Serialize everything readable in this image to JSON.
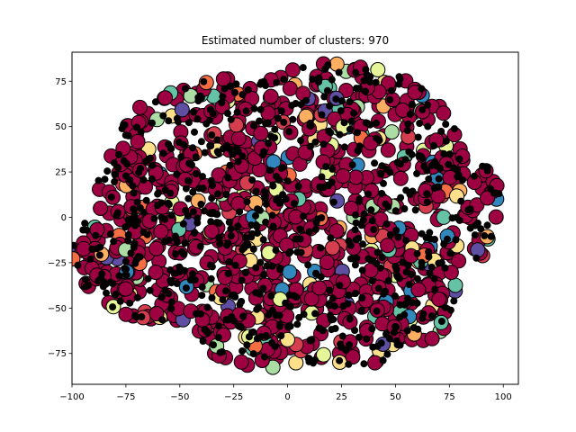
{
  "chart_data": {
    "type": "scatter",
    "title": "Estimated number of clusters: 970",
    "xlabel": "",
    "ylabel": "",
    "xlim": [
      -100,
      107
    ],
    "ylim": [
      -92,
      91
    ],
    "grid": false,
    "legend": "none",
    "xticks": [
      -100,
      -75,
      -50,
      -25,
      0,
      25,
      50,
      75,
      100
    ],
    "yticks": [
      -75,
      -50,
      -25,
      0,
      25,
      50,
      75
    ],
    "xtick_labels": [
      "−100",
      "−75",
      "−50",
      "−25",
      "0",
      "25",
      "50",
      "75",
      "100"
    ],
    "ytick_labels": [
      "−75",
      "−50",
      "−25",
      "0",
      "25",
      "50",
      "75"
    ],
    "blobs": [
      {
        "cx": -22,
        "cy": 22,
        "rx": 66,
        "ry": 55
      },
      {
        "cx": 22,
        "cy": 35,
        "rx": 58,
        "ry": 50
      },
      {
        "cx": 72,
        "cy": 5,
        "rx": 28,
        "ry": 35
      },
      {
        "cx": -55,
        "cy": -20,
        "rx": 45,
        "ry": 38
      },
      {
        "cx": 25,
        "cy": -40,
        "rx": 55,
        "ry": 42
      },
      {
        "cx": -10,
        "cy": -55,
        "rx": 35,
        "ry": 28
      }
    ],
    "cluster_colors": [
      "#9e0142",
      "#d53e4f",
      "#f46d43",
      "#fdae61",
      "#fee08b",
      "#e6f598",
      "#abdda4",
      "#66c2a5",
      "#3288bd",
      "#5e4fa2"
    ],
    "noise_color": "#000000",
    "dominant_cluster_color": "#9e0142",
    "random_seed": 970
  }
}
